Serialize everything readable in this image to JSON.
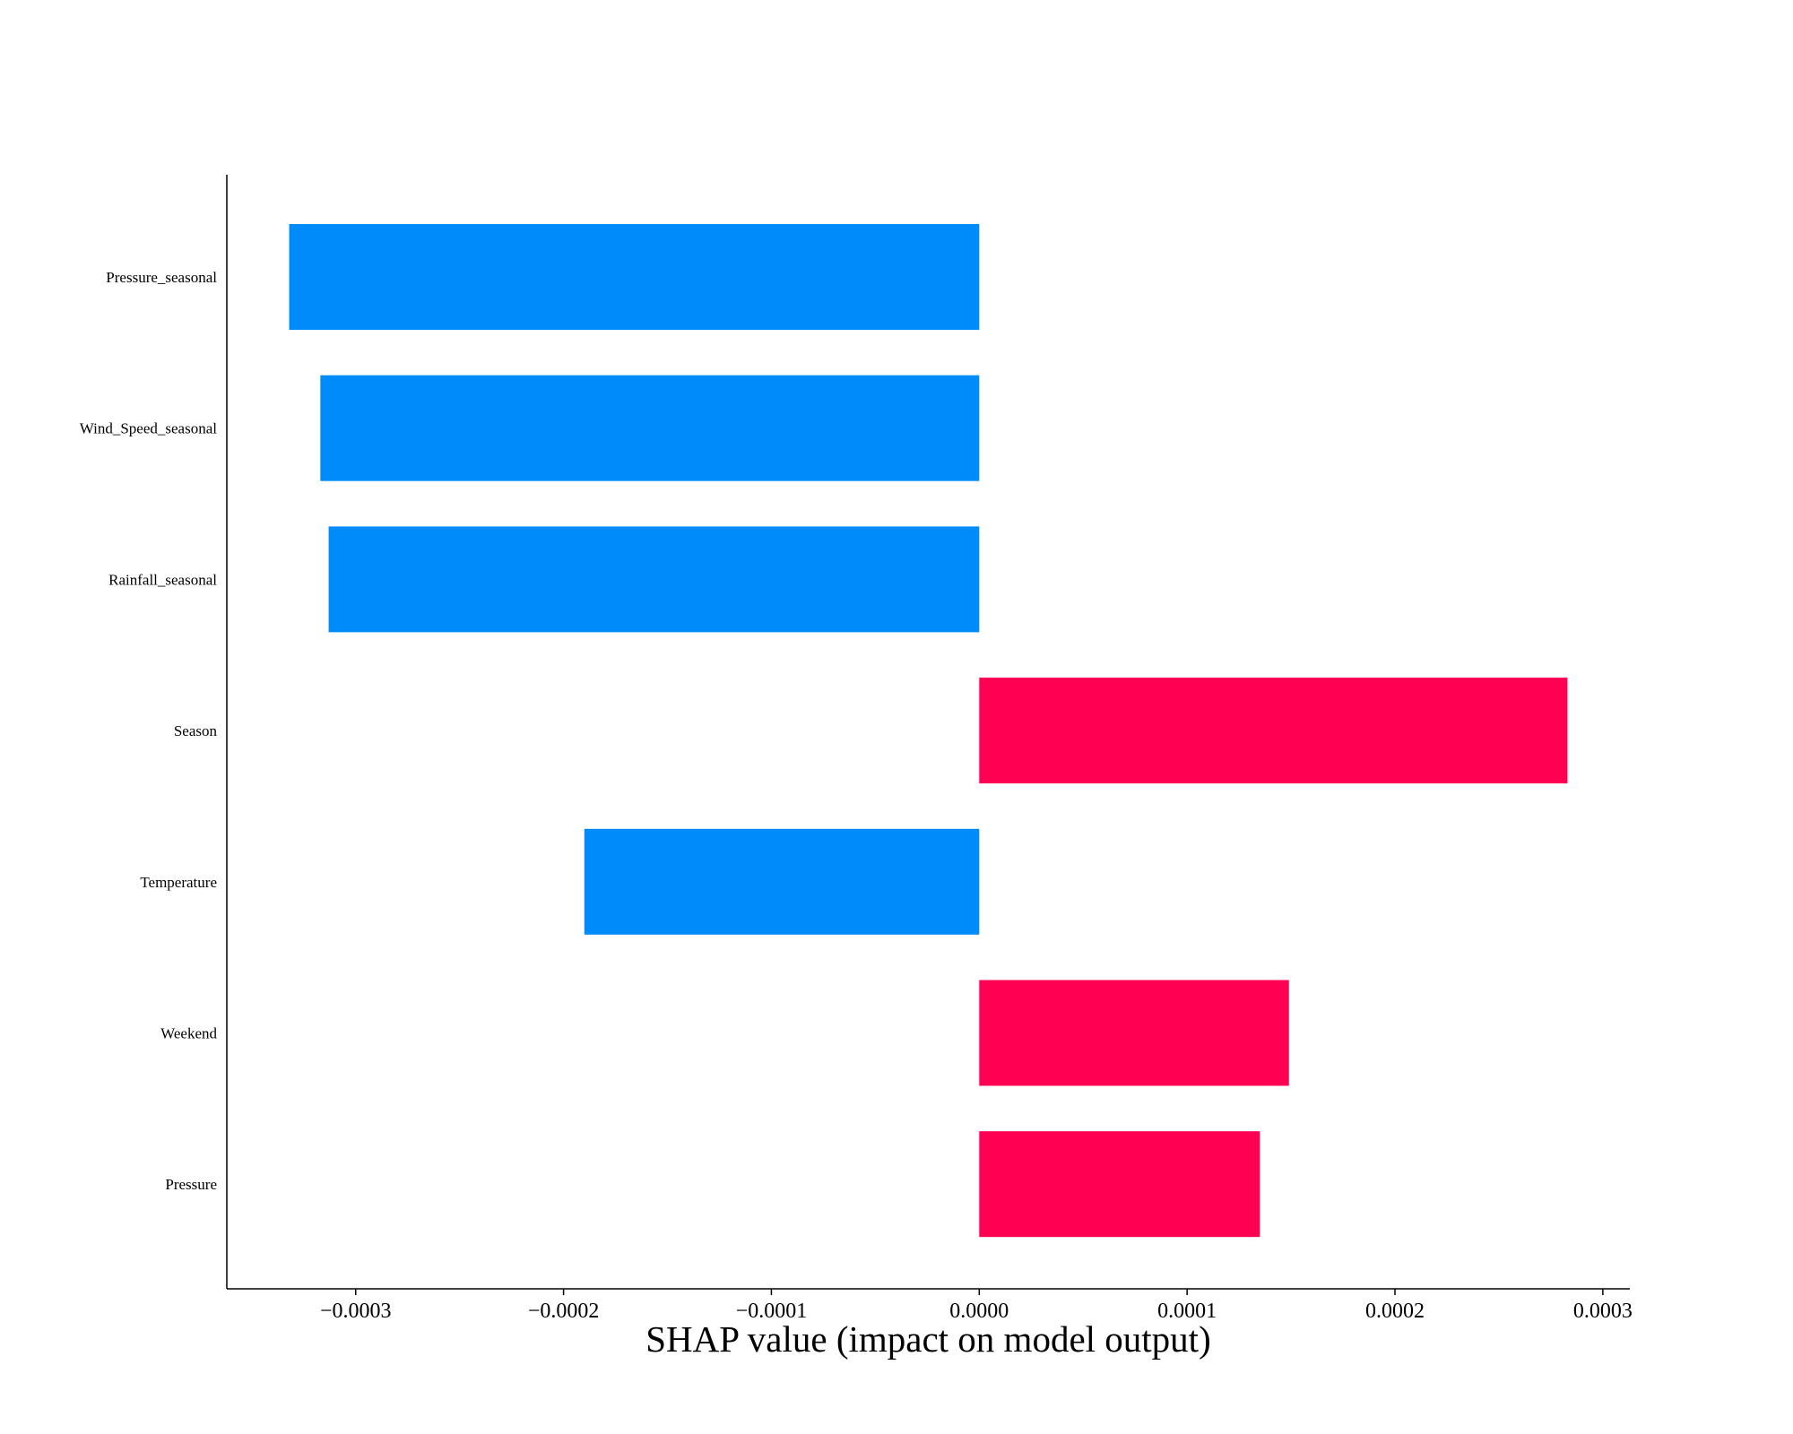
{
  "chart_data": {
    "type": "bar",
    "orientation": "horizontal",
    "xlabel": "SHAP value (impact on model output)",
    "ylabel": "",
    "title": "",
    "xlim": [
      -0.000362,
      0.000313
    ],
    "x_ticks": [
      -0.0003,
      -0.0002,
      -0.0001,
      0.0,
      0.0001,
      0.0002,
      0.0003
    ],
    "x_tick_labels": [
      "−0.0003",
      "−0.0002",
      "−0.0001",
      "0.0000",
      "0.0001",
      "0.0002",
      "0.0003"
    ],
    "categories": [
      "Pressure_seasonal",
      "Wind_Speed_seasonal",
      "Rainfall_seasonal",
      "Season",
      "Temperature",
      "Weekend",
      "Pressure"
    ],
    "values": [
      -0.000332,
      -0.000317,
      -0.000313,
      0.000283,
      -0.00019,
      0.000149,
      0.000135
    ],
    "colors": {
      "positive": "#ff0052",
      "negative": "#008bfb"
    },
    "grid": false,
    "legend": "none"
  }
}
